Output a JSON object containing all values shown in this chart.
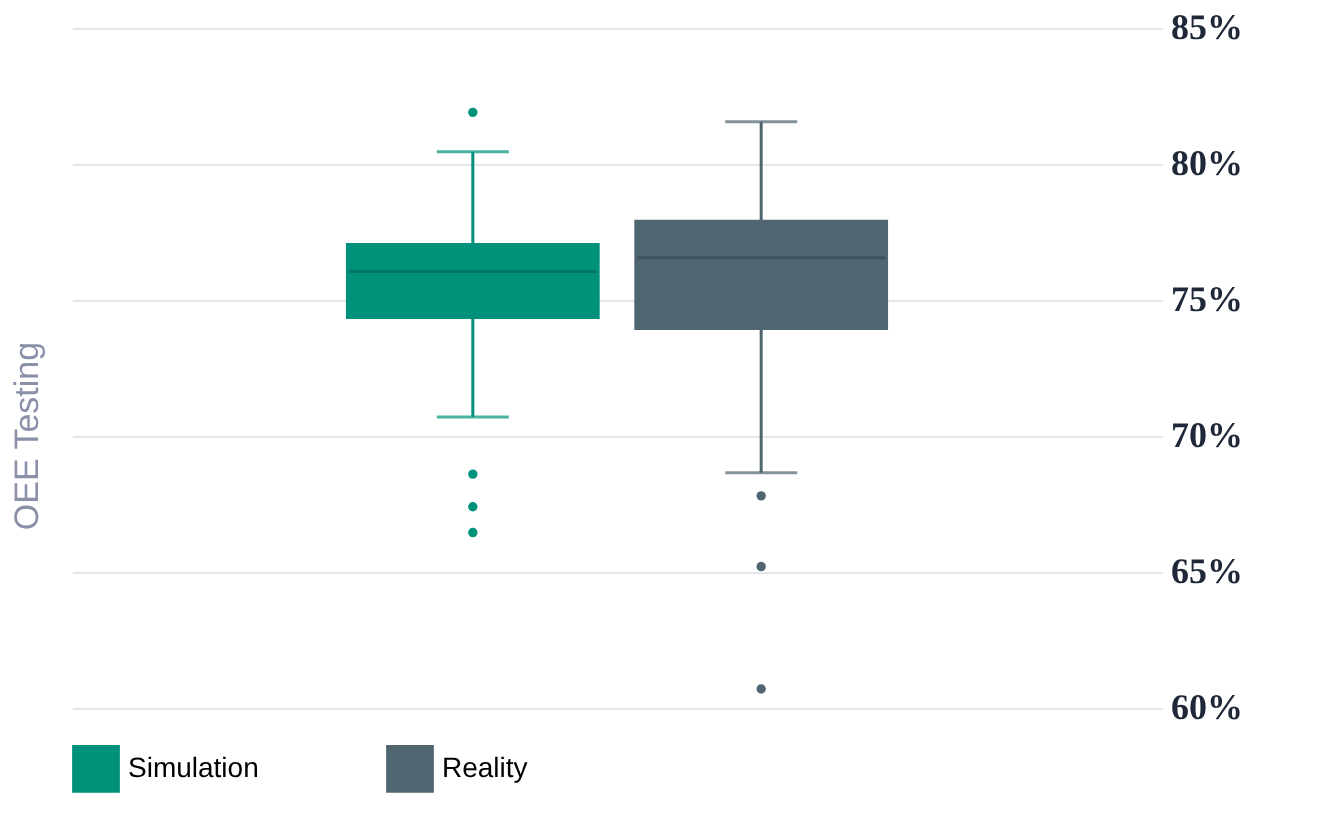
{
  "chart_data": {
    "type": "box",
    "ylabel": "OEE Testing",
    "categories": [
      null
    ],
    "series": [
      {
        "name": "Simulation",
        "color": "#00917a",
        "boxes": [
          {
            "low": 70.7,
            "q1": 74.3,
            "median": 76.05,
            "q3": 77.1,
            "high": 80.45,
            "outliers": [
              81.9,
              68.6,
              67.4,
              66.45
            ]
          }
        ]
      },
      {
        "name": "Reality",
        "color": "#4f6570",
        "boxes": [
          {
            "low": 68.65,
            "q1": 73.9,
            "median": 76.55,
            "q3": 77.95,
            "high": 81.55,
            "outliers": [
              67.8,
              65.2,
              60.7
            ]
          }
        ]
      }
    ],
    "ylim": [
      60,
      85
    ],
    "yticks": [
      {
        "value": 60,
        "label": "60%"
      },
      {
        "value": 65,
        "label": "65%"
      },
      {
        "value": 70,
        "label": "70%"
      },
      {
        "value": 75,
        "label": "75%"
      },
      {
        "value": 80,
        "label": "80%"
      },
      {
        "value": 85,
        "label": "85%"
      }
    ],
    "grid": "y",
    "legend": "bottom"
  }
}
